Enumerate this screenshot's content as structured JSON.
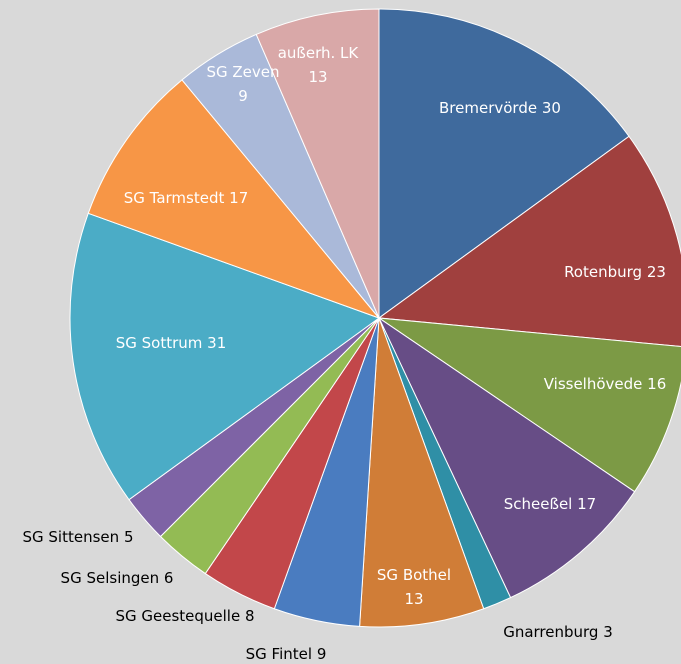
{
  "chart_data": {
    "type": "pie",
    "categories": [
      "Bremervörde",
      "Rotenburg",
      "Visselhövede",
      "Scheeßel",
      "Gnarrenburg",
      "SG Bothel",
      "SG Fintel",
      "SG Geestequelle",
      "SG Selsingen",
      "SG Sittensen",
      "SG Sottrum",
      "SG Tarmstedt",
      "SG Zeven",
      "außerh.  LK"
    ],
    "values": [
      30,
      23,
      16,
      17,
      3,
      13,
      9,
      8,
      6,
      5,
      31,
      17,
      9,
      13
    ],
    "colors": [
      "#3f6a9d",
      "#a0403e",
      "#7c9a45",
      "#674d86",
      "#2f8fa6",
      "#d07d37",
      "#4a7cc0",
      "#c2474a",
      "#93bb54",
      "#7e63a5",
      "#4bacc6",
      "#f79646",
      "#aab9d9",
      "#d9a8a8"
    ]
  }
}
